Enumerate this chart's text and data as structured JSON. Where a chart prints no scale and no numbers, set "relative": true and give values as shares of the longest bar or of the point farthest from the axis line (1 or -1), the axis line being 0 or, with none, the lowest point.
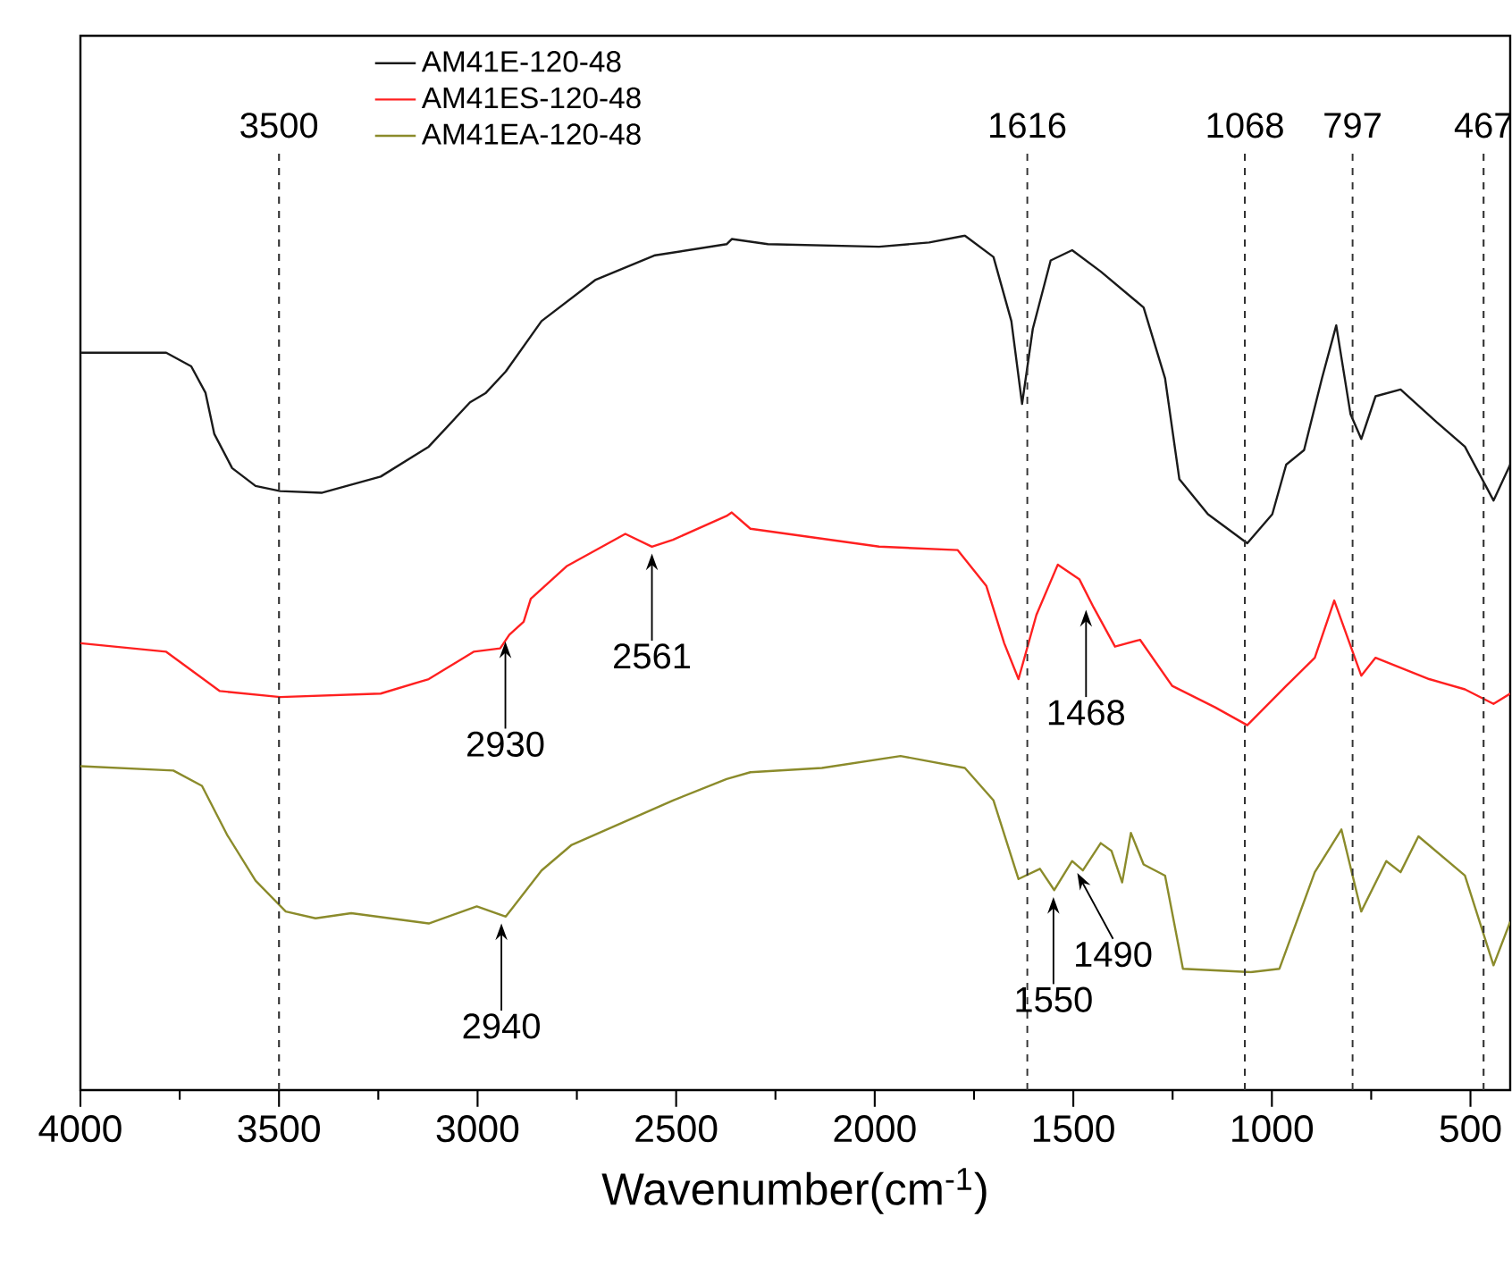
{
  "chart_data": {
    "type": "line",
    "relative": true,
    "xlabel": "Wavenumber(cm$^{-1}$)",
    "xlim": [
      4000,
      400
    ],
    "xticks": [
      4000,
      3500,
      3000,
      2500,
      2000,
      1500,
      1000,
      500
    ],
    "tick_labels": "x",
    "legend": "top left",
    "line_style": "solid",
    "series": [
      {
        "name": "AM41E-120-48",
        "color": "#1a1a1a",
        "x": [
          4000,
          3784,
          3721,
          3685,
          3663,
          3618,
          3559,
          3497,
          3393,
          3244,
          3123,
          3019,
          2979,
          2929,
          2839,
          2704,
          2553,
          2373,
          2360,
          2269,
          1989,
          1863,
          1773,
          1701,
          1656,
          1629,
          1602,
          1557,
          1503,
          1431,
          1323,
          1269,
          1233,
          1161,
          1062,
          999,
          964,
          919,
          874,
          838,
          802,
          775,
          739,
          676,
          586,
          514,
          442,
          400
        ],
        "values": [
          0.863,
          0.863,
          0.847,
          0.816,
          0.768,
          0.728,
          0.707,
          0.701,
          0.699,
          0.718,
          0.753,
          0.805,
          0.816,
          0.841,
          0.9,
          0.948,
          0.977,
          0.99,
          0.996,
          0.99,
          0.987,
          0.992,
          1.0,
          0.975,
          0.9,
          0.803,
          0.891,
          0.971,
          0.983,
          0.958,
          0.916,
          0.833,
          0.715,
          0.674,
          0.64,
          0.674,
          0.732,
          0.749,
          0.833,
          0.895,
          0.791,
          0.762,
          0.812,
          0.82,
          0.782,
          0.753,
          0.69,
          0.732
        ]
      },
      {
        "name": "AM41ES-120-48",
        "color": "#ff2020",
        "x": [
          4000,
          3784,
          3708,
          3649,
          3497,
          3244,
          3123,
          3010,
          2943,
          2920,
          2884,
          2866,
          2776,
          2628,
          2561,
          2508,
          2373,
          2360,
          2313,
          1989,
          1791,
          1719,
          1674,
          1638,
          1593,
          1539,
          1485,
          1449,
          1395,
          1332,
          1251,
          1143,
          1062,
          964,
          892,
          843,
          775,
          739,
          604,
          514,
          442,
          400
        ],
        "values": [
          0.523,
          0.513,
          0.487,
          0.467,
          0.46,
          0.464,
          0.481,
          0.513,
          0.517,
          0.533,
          0.548,
          0.575,
          0.613,
          0.651,
          0.636,
          0.644,
          0.672,
          0.676,
          0.657,
          0.636,
          0.632,
          0.59,
          0.523,
          0.481,
          0.556,
          0.615,
          0.598,
          0.565,
          0.519,
          0.527,
          0.473,
          0.448,
          0.427,
          0.473,
          0.506,
          0.573,
          0.485,
          0.506,
          0.481,
          0.469,
          0.452,
          0.464
        ]
      },
      {
        "name": "AM41EA-120-48",
        "color": "#8b8b2b",
        "x": [
          4000,
          3766,
          3694,
          3631,
          3559,
          3483,
          3408,
          3318,
          3123,
          3002,
          2929,
          2839,
          2763,
          2508,
          2373,
          2313,
          2133,
          1935,
          1773,
          1701,
          1638,
          1584,
          1548,
          1503,
          1476,
          1431,
          1404,
          1377,
          1355,
          1323,
          1269,
          1224,
          1053,
          981,
          892,
          825,
          775,
          712,
          676,
          631,
          514,
          442,
          400
        ],
        "values": [
          0.379,
          0.374,
          0.356,
          0.299,
          0.245,
          0.209,
          0.201,
          0.207,
          0.195,
          0.215,
          0.203,
          0.257,
          0.287,
          0.339,
          0.364,
          0.372,
          0.377,
          0.391,
          0.377,
          0.339,
          0.247,
          0.259,
          0.234,
          0.268,
          0.257,
          0.289,
          0.28,
          0.243,
          0.301,
          0.264,
          0.251,
          0.142,
          0.138,
          0.142,
          0.255,
          0.305,
          0.209,
          0.268,
          0.255,
          0.297,
          0.251,
          0.146,
          0.197
        ]
      }
    ],
    "ref_lines": [
      {
        "axis": "x",
        "value": 3500,
        "label": "3500",
        "line_style": "dashed"
      },
      {
        "axis": "x",
        "value": 1616,
        "label": "1616",
        "line_style": "dashed"
      },
      {
        "axis": "x",
        "value": 1068,
        "label": "1068",
        "line_style": "dashed"
      },
      {
        "axis": "x",
        "value": 797,
        "label": "797",
        "line_style": "dashed"
      },
      {
        "axis": "x",
        "value": 467,
        "label": "467",
        "line_style": "dashed"
      }
    ],
    "annotations": [
      {
        "text": "2561",
        "x": 2561,
        "y": 0.636
      },
      {
        "text": "2930",
        "x": 2930,
        "y": 0.533
      },
      {
        "text": "1468",
        "x": 1468,
        "y": 0.57
      },
      {
        "text": "2940",
        "x": 2940,
        "y": 0.203
      },
      {
        "text": "1550",
        "x": 1550,
        "y": 0.234
      },
      {
        "text": "1490",
        "x": 1490,
        "y": 0.262
      }
    ]
  }
}
